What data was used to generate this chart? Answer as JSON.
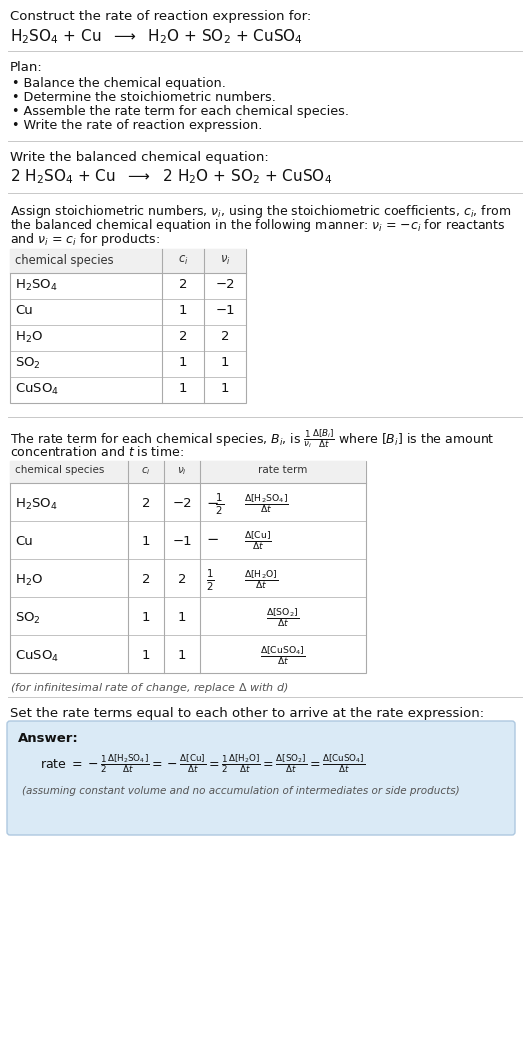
{
  "title_line1": "Construct the rate of reaction expression for:",
  "plan_items": [
    "• Balance the chemical equation.",
    "• Determine the stoichiometric numbers.",
    "• Assemble the rate term for each chemical species.",
    "• Write the rate of reaction expression."
  ],
  "table1_rows": [
    [
      "H_2SO_4",
      "2",
      "−2"
    ],
    [
      "Cu",
      "1",
      "−1"
    ],
    [
      "H_2O",
      "2",
      "2"
    ],
    [
      "SO_2",
      "1",
      "1"
    ],
    [
      "CuSO_4",
      "1",
      "1"
    ]
  ],
  "table2_rows": [
    [
      "H_2SO_4",
      "2",
      "−2"
    ],
    [
      "Cu",
      "1",
      "−1"
    ],
    [
      "H_2O",
      "2",
      "2"
    ],
    [
      "SO_2",
      "1",
      "1"
    ],
    [
      "CuSO_4",
      "1",
      "1"
    ]
  ],
  "answer_bg_color": "#daeaf6",
  "answer_border_color": "#aec8e0",
  "bg_color": "#ffffff",
  "separator_color": "#c8c8c8",
  "table_border_color": "#aaaaaa",
  "font_size": 9.5
}
